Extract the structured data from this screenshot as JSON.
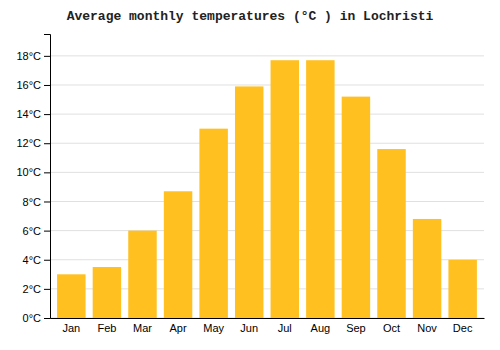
{
  "chart_data": {
    "type": "bar",
    "title": "Average monthly temperatures (°C ) in Lochristi",
    "categories": [
      "Jan",
      "Feb",
      "Mar",
      "Apr",
      "May",
      "Jun",
      "Jul",
      "Aug",
      "Sep",
      "Oct",
      "Nov",
      "Dec"
    ],
    "values": [
      3.0,
      3.5,
      6.0,
      8.7,
      13.0,
      15.9,
      17.7,
      17.7,
      15.2,
      11.6,
      6.8,
      4.0
    ],
    "color": "#FFC020",
    "ylim": [
      0,
      19.5
    ],
    "yticks": [
      {
        "value": 0,
        "label": "0°C"
      },
      {
        "value": 2,
        "label": "2°C"
      },
      {
        "value": 4,
        "label": "4°C"
      },
      {
        "value": 6,
        "label": "6°C"
      },
      {
        "value": 8,
        "label": "8°C"
      },
      {
        "value": 10,
        "label": "10°C"
      },
      {
        "value": 12,
        "label": "12°C"
      },
      {
        "value": 14,
        "label": "14°C"
      },
      {
        "value": 16,
        "label": "16°C"
      },
      {
        "value": 18,
        "label": "18°C"
      }
    ],
    "grid": true
  }
}
